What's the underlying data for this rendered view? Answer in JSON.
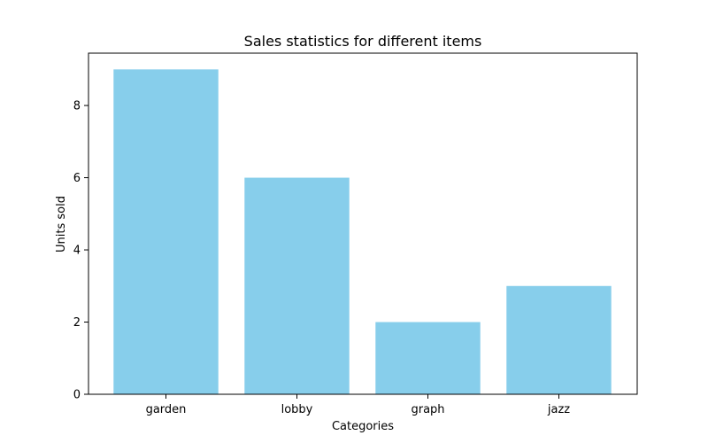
{
  "chart_data": {
    "type": "bar",
    "title": "Sales statistics for different items",
    "xlabel": "Categories",
    "ylabel": "Units sold",
    "categories": [
      "garden",
      "lobby",
      "graph",
      "jazz"
    ],
    "values": [
      9,
      6,
      2,
      3
    ],
    "ylim": [
      0,
      9.45
    ],
    "yticks": [
      0,
      2,
      4,
      6,
      8
    ],
    "bar_color": "#87CEEB",
    "grid": false,
    "legend": "none"
  }
}
